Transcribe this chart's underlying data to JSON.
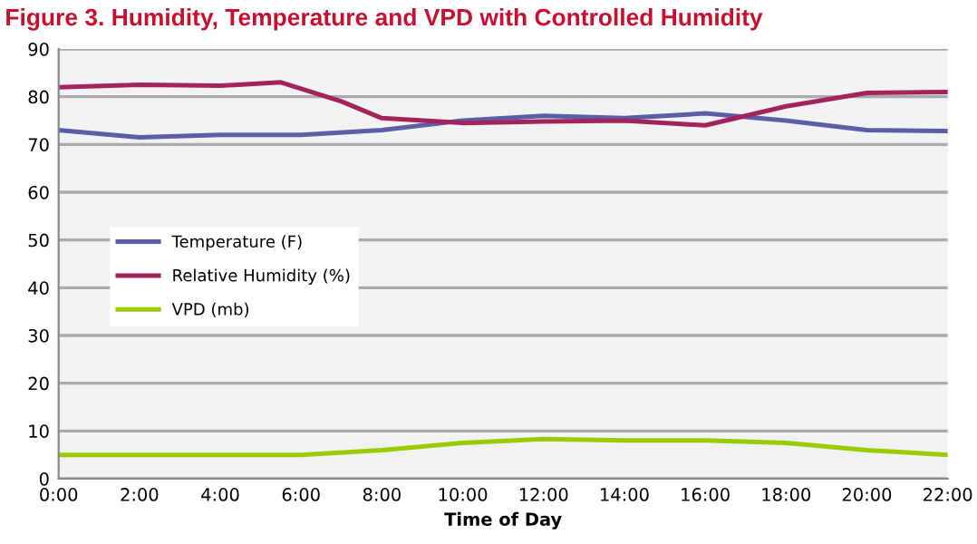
{
  "chart_data": {
    "type": "line",
    "title": "Figure 3. Humidity, Temperature and VPD with Controlled Humidity",
    "xlabel": "Time of Day",
    "xlim": [
      0,
      22
    ],
    "xticks": [
      {
        "value": 0,
        "label": "0:00"
      },
      {
        "value": 2,
        "label": "2:00"
      },
      {
        "value": 4,
        "label": "4:00"
      },
      {
        "value": 6,
        "label": "6:00"
      },
      {
        "value": 8,
        "label": "8:00"
      },
      {
        "value": 10,
        "label": "10:00"
      },
      {
        "value": 12,
        "label": "12:00"
      },
      {
        "value": 14,
        "label": "14:00"
      },
      {
        "value": 16,
        "label": "16:00"
      },
      {
        "value": 18,
        "label": "18:00"
      },
      {
        "value": 20,
        "label": "20:00"
      },
      {
        "value": 22,
        "label": "22:00"
      }
    ],
    "ylim": [
      0,
      90
    ],
    "yticks": [
      0,
      10,
      20,
      30,
      40,
      50,
      60,
      70,
      80,
      90
    ],
    "grid": "y",
    "legend": "left",
    "marker": "none",
    "series": [
      {
        "name": "Temperature (F)",
        "color": "#5b5ea6",
        "x": [
          0,
          2,
          4,
          6,
          8,
          10,
          12,
          14,
          16,
          18,
          20,
          22
        ],
        "values": [
          73,
          71.5,
          72,
          72,
          73,
          75,
          76,
          75.5,
          76.5,
          75,
          73,
          72.8
        ]
      },
      {
        "name": "Relative Humidity (%)",
        "color": "#a3245a",
        "x": [
          0,
          2,
          4,
          5.5,
          7,
          8,
          10,
          12,
          14,
          16,
          18,
          20,
          22
        ],
        "values": [
          82,
          82.5,
          82.3,
          83,
          79,
          75.5,
          74.5,
          74.8,
          75,
          74,
          78,
          80.8,
          81
        ]
      },
      {
        "name": "VPD (mb)",
        "color": "#99cc00",
        "x": [
          0,
          2,
          4,
          6,
          8,
          10,
          12,
          14,
          16,
          18,
          20,
          22
        ],
        "values": [
          5,
          5,
          5,
          5,
          6,
          7.5,
          8.3,
          8,
          8,
          7.5,
          6,
          5
        ]
      }
    ]
  }
}
